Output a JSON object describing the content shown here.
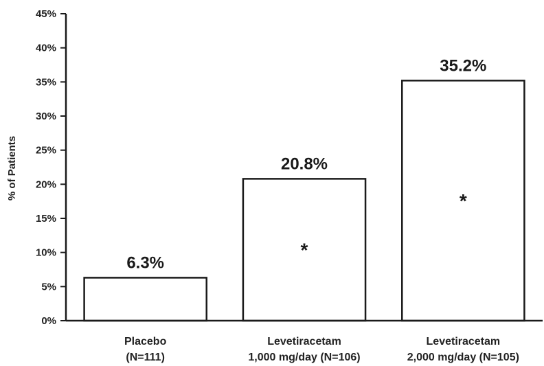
{
  "chart_data": {
    "type": "bar",
    "ylabel": "% of Patients",
    "ylim": [
      0,
      45
    ],
    "yticks": [
      "0%",
      "5%",
      "10%",
      "15%",
      "20%",
      "25%",
      "30%",
      "35%",
      "40%",
      "45%"
    ],
    "categories": [
      [
        "Placebo",
        "(N=111)"
      ],
      [
        "Levetiracetam",
        "1,000 mg/day (N=106)"
      ],
      [
        "Levetiracetam",
        "2,000 mg/day (N=105)"
      ]
    ],
    "values": [
      6.3,
      20.8,
      35.2
    ],
    "data_labels": [
      "6.3%",
      "20.8%",
      "35.2%"
    ],
    "markers": [
      "",
      "*",
      "*"
    ],
    "bar_fill": "#ffffff",
    "bar_stroke": "#1a1a1a",
    "grid": false
  }
}
